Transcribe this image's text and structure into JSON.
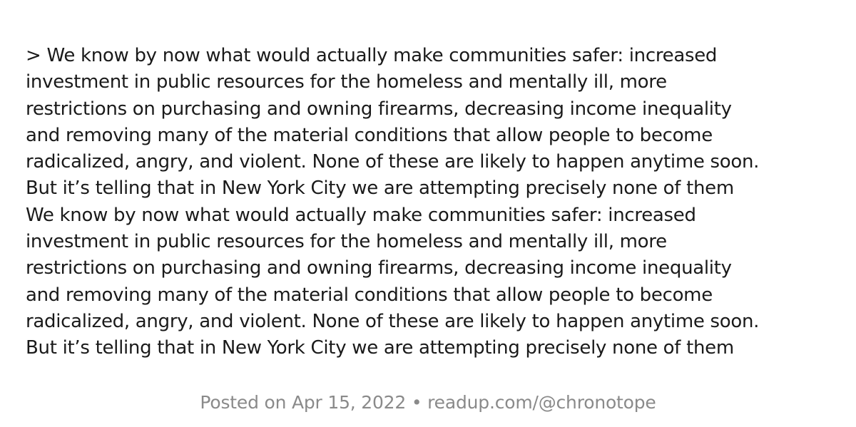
{
  "quote": {
    "lines": [
      "> We know by now what would actually make communities safer: increased",
      "investment in public resources for the homeless and mentally ill, more",
      "restrictions on purchasing and owning firearms, decreasing income inequality",
      "and removing many of the material conditions that allow people to become",
      "radicalized, angry, and violent. None of these are likely to happen anytime soon.",
      "But it’s telling that in New York City we are attempting precisely none of them",
      "We know by now what would actually make communities safer: increased",
      "investment in public resources for the homeless and mentally ill, more",
      "restrictions on purchasing and owning firearms, decreasing income inequality",
      "and removing many of the material conditions that allow people to become",
      "radicalized, angry, and violent. None of these are likely to happen anytime soon.",
      "But it’s telling that in New York City we are attempting precisely none of them"
    ]
  },
  "footer": {
    "text": "Posted on Apr 15, 2022 • readup.com/@chronotope"
  }
}
